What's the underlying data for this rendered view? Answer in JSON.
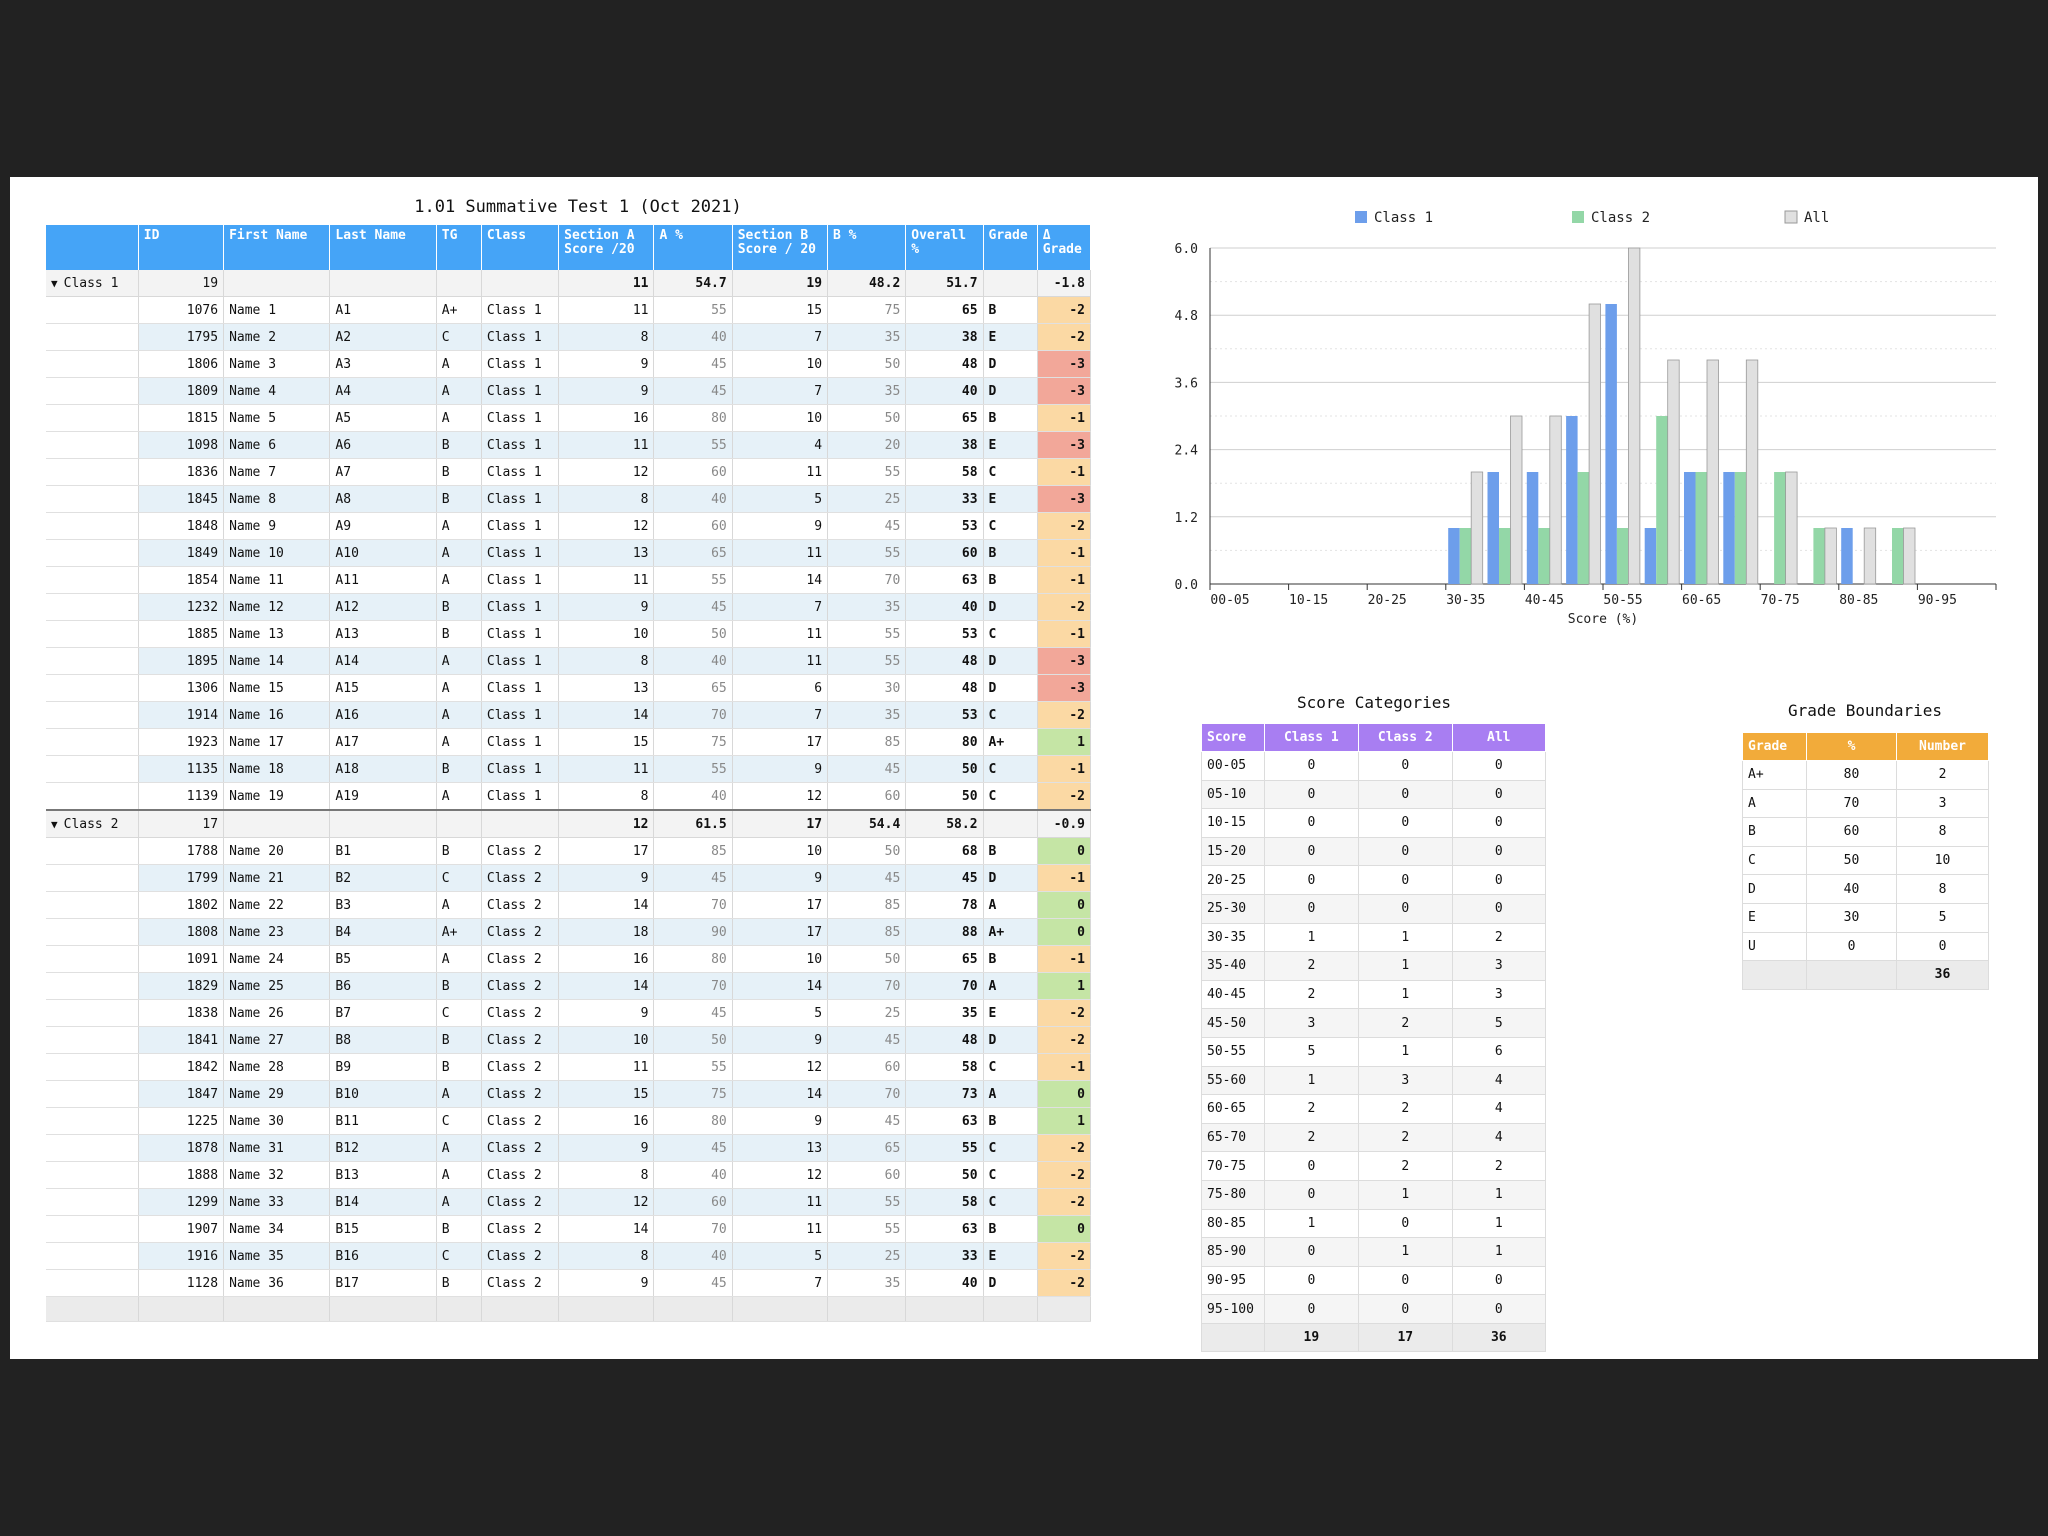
{
  "title": "1.01 Summative Test 1 (Oct 2021)",
  "columns": [
    "",
    "ID",
    "First Name",
    "Last Name",
    "TG",
    "Class",
    "Section A Score /20",
    "A %",
    "Section B Score / 20",
    "B %",
    "Overall %",
    "Grade",
    "Δ Grade"
  ],
  "colors": {
    "delta_pos": "#c5e5a5",
    "delta_neg1": "#fbd9a4",
    "delta_neg3": "#f2a799",
    "class1": "#6d9eeb",
    "class2": "#93d7a7",
    "all": "#e0e0e0"
  },
  "groups": [
    {
      "label": "Class 1",
      "id": "19",
      "summary": {
        "secA": "11",
        "aPct": "54.7",
        "secB": "19",
        "bPct": "48.2",
        "overall": "51.7",
        "delta": "-1.8"
      },
      "rows": [
        [
          "1076",
          "Name 1",
          "A1",
          "A+",
          "Class 1",
          "11",
          "55",
          "15",
          "75",
          "65",
          "B",
          "-2"
        ],
        [
          "1795",
          "Name 2",
          "A2",
          "C",
          "Class 1",
          "8",
          "40",
          "7",
          "35",
          "38",
          "E",
          "-2"
        ],
        [
          "1806",
          "Name 3",
          "A3",
          "A",
          "Class 1",
          "9",
          "45",
          "10",
          "50",
          "48",
          "D",
          "-3"
        ],
        [
          "1809",
          "Name 4",
          "A4",
          "A",
          "Class 1",
          "9",
          "45",
          "7",
          "35",
          "40",
          "D",
          "-3"
        ],
        [
          "1815",
          "Name 5",
          "A5",
          "A",
          "Class 1",
          "16",
          "80",
          "10",
          "50",
          "65",
          "B",
          "-1"
        ],
        [
          "1098",
          "Name 6",
          "A6",
          "B",
          "Class 1",
          "11",
          "55",
          "4",
          "20",
          "38",
          "E",
          "-3"
        ],
        [
          "1836",
          "Name 7",
          "A7",
          "B",
          "Class 1",
          "12",
          "60",
          "11",
          "55",
          "58",
          "C",
          "-1"
        ],
        [
          "1845",
          "Name 8",
          "A8",
          "B",
          "Class 1",
          "8",
          "40",
          "5",
          "25",
          "33",
          "E",
          "-3"
        ],
        [
          "1848",
          "Name 9",
          "A9",
          "A",
          "Class 1",
          "12",
          "60",
          "9",
          "45",
          "53",
          "C",
          "-2"
        ],
        [
          "1849",
          "Name 10",
          "A10",
          "A",
          "Class 1",
          "13",
          "65",
          "11",
          "55",
          "60",
          "B",
          "-1"
        ],
        [
          "1854",
          "Name 11",
          "A11",
          "A",
          "Class 1",
          "11",
          "55",
          "14",
          "70",
          "63",
          "B",
          "-1"
        ],
        [
          "1232",
          "Name 12",
          "A12",
          "B",
          "Class 1",
          "9",
          "45",
          "7",
          "35",
          "40",
          "D",
          "-2"
        ],
        [
          "1885",
          "Name 13",
          "A13",
          "B",
          "Class 1",
          "10",
          "50",
          "11",
          "55",
          "53",
          "C",
          "-1"
        ],
        [
          "1895",
          "Name 14",
          "A14",
          "A",
          "Class 1",
          "8",
          "40",
          "11",
          "55",
          "48",
          "D",
          "-3"
        ],
        [
          "1306",
          "Name 15",
          "A15",
          "A",
          "Class 1",
          "13",
          "65",
          "6",
          "30",
          "48",
          "D",
          "-3"
        ],
        [
          "1914",
          "Name 16",
          "A16",
          "A",
          "Class 1",
          "14",
          "70",
          "7",
          "35",
          "53",
          "C",
          "-2"
        ],
        [
          "1923",
          "Name 17",
          "A17",
          "A",
          "Class 1",
          "15",
          "75",
          "17",
          "85",
          "80",
          "A+",
          "1"
        ],
        [
          "1135",
          "Name 18",
          "A18",
          "B",
          "Class 1",
          "11",
          "55",
          "9",
          "45",
          "50",
          "C",
          "-1"
        ],
        [
          "1139",
          "Name 19",
          "A19",
          "A",
          "Class 1",
          "8",
          "40",
          "12",
          "60",
          "50",
          "C",
          "-2"
        ]
      ]
    },
    {
      "label": "Class 2",
      "id": "17",
      "summary": {
        "secA": "12",
        "aPct": "61.5",
        "secB": "17",
        "bPct": "54.4",
        "overall": "58.2",
        "delta": "-0.9"
      },
      "rows": [
        [
          "1788",
          "Name 20",
          "B1",
          "B",
          "Class 2",
          "17",
          "85",
          "10",
          "50",
          "68",
          "B",
          "0"
        ],
        [
          "1799",
          "Name 21",
          "B2",
          "C",
          "Class 2",
          "9",
          "45",
          "9",
          "45",
          "45",
          "D",
          "-1"
        ],
        [
          "1802",
          "Name 22",
          "B3",
          "A",
          "Class 2",
          "14",
          "70",
          "17",
          "85",
          "78",
          "A",
          "0"
        ],
        [
          "1808",
          "Name 23",
          "B4",
          "A+",
          "Class 2",
          "18",
          "90",
          "17",
          "85",
          "88",
          "A+",
          "0"
        ],
        [
          "1091",
          "Name 24",
          "B5",
          "A",
          "Class 2",
          "16",
          "80",
          "10",
          "50",
          "65",
          "B",
          "-1"
        ],
        [
          "1829",
          "Name 25",
          "B6",
          "B",
          "Class 2",
          "14",
          "70",
          "14",
          "70",
          "70",
          "A",
          "1"
        ],
        [
          "1838",
          "Name 26",
          "B7",
          "C",
          "Class 2",
          "9",
          "45",
          "5",
          "25",
          "35",
          "E",
          "-2"
        ],
        [
          "1841",
          "Name 27",
          "B8",
          "B",
          "Class 2",
          "10",
          "50",
          "9",
          "45",
          "48",
          "D",
          "-2"
        ],
        [
          "1842",
          "Name 28",
          "B9",
          "B",
          "Class 2",
          "11",
          "55",
          "12",
          "60",
          "58",
          "C",
          "-1"
        ],
        [
          "1847",
          "Name 29",
          "B10",
          "A",
          "Class 2",
          "15",
          "75",
          "14",
          "70",
          "73",
          "A",
          "0"
        ],
        [
          "1225",
          "Name 30",
          "B11",
          "C",
          "Class 2",
          "16",
          "80",
          "9",
          "45",
          "63",
          "B",
          "1"
        ],
        [
          "1878",
          "Name 31",
          "B12",
          "A",
          "Class 2",
          "9",
          "45",
          "13",
          "65",
          "55",
          "C",
          "-2"
        ],
        [
          "1888",
          "Name 32",
          "B13",
          "A",
          "Class 2",
          "8",
          "40",
          "12",
          "60",
          "50",
          "C",
          "-2"
        ],
        [
          "1299",
          "Name 33",
          "B14",
          "A",
          "Class 2",
          "12",
          "60",
          "11",
          "55",
          "58",
          "C",
          "-2"
        ],
        [
          "1907",
          "Name 34",
          "B15",
          "B",
          "Class 2",
          "14",
          "70",
          "11",
          "55",
          "63",
          "B",
          "0"
        ],
        [
          "1916",
          "Name 35",
          "B16",
          "C",
          "Class 2",
          "8",
          "40",
          "5",
          "25",
          "33",
          "E",
          "-2"
        ],
        [
          "1128",
          "Name 36",
          "B17",
          "B",
          "Class 2",
          "9",
          "45",
          "7",
          "35",
          "40",
          "D",
          "-2"
        ]
      ]
    }
  ],
  "chart_data": {
    "type": "bar",
    "xlabel": "Score (%)",
    "ylim": [
      0,
      6
    ],
    "yticks": [
      "0.0",
      "1.2",
      "2.4",
      "3.6",
      "4.8",
      "6.0"
    ],
    "grid": true,
    "legend_position": "top",
    "categories": [
      "00-05",
      "05-10",
      "10-15",
      "15-20",
      "20-25",
      "25-30",
      "30-35",
      "35-40",
      "40-45",
      "45-50",
      "50-55",
      "55-60",
      "60-65",
      "65-70",
      "70-75",
      "75-80",
      "80-85",
      "85-90",
      "90-95",
      "95-100"
    ],
    "category_labels": [
      "00-05",
      "10-15",
      "20-25",
      "30-35",
      "40-45",
      "50-55",
      "60-65",
      "70-75",
      "80-85",
      "90-95"
    ],
    "series": [
      {
        "name": "Class 1",
        "color": "#6d9eeb",
        "values": [
          0,
          0,
          0,
          0,
          0,
          0,
          1,
          2,
          2,
          3,
          5,
          1,
          2,
          2,
          0,
          0,
          1,
          0,
          0,
          0
        ]
      },
      {
        "name": "Class 2",
        "color": "#93d7a7",
        "values": [
          0,
          0,
          0,
          0,
          0,
          0,
          1,
          1,
          1,
          2,
          1,
          3,
          2,
          2,
          2,
          1,
          0,
          1,
          0,
          0
        ]
      },
      {
        "name": "All",
        "color": "#e0e0e0",
        "values": [
          0,
          0,
          0,
          0,
          0,
          0,
          2,
          3,
          3,
          5,
          6,
          4,
          4,
          4,
          2,
          1,
          1,
          1,
          0,
          0
        ]
      }
    ]
  },
  "score_categories": {
    "title": "Score Categories",
    "headers": [
      "Score",
      "Class 1",
      "Class 2",
      "All"
    ],
    "rows": [
      [
        "00-05",
        "0",
        "0",
        "0"
      ],
      [
        "05-10",
        "0",
        "0",
        "0"
      ],
      [
        "10-15",
        "0",
        "0",
        "0"
      ],
      [
        "15-20",
        "0",
        "0",
        "0"
      ],
      [
        "20-25",
        "0",
        "0",
        "0"
      ],
      [
        "25-30",
        "0",
        "0",
        "0"
      ],
      [
        "30-35",
        "1",
        "1",
        "2"
      ],
      [
        "35-40",
        "2",
        "1",
        "3"
      ],
      [
        "40-45",
        "2",
        "1",
        "3"
      ],
      [
        "45-50",
        "3",
        "2",
        "5"
      ],
      [
        "50-55",
        "5",
        "1",
        "6"
      ],
      [
        "55-60",
        "1",
        "3",
        "4"
      ],
      [
        "60-65",
        "2",
        "2",
        "4"
      ],
      [
        "65-70",
        "2",
        "2",
        "4"
      ],
      [
        "70-75",
        "0",
        "2",
        "2"
      ],
      [
        "75-80",
        "0",
        "1",
        "1"
      ],
      [
        "80-85",
        "1",
        "0",
        "1"
      ],
      [
        "85-90",
        "0",
        "1",
        "1"
      ],
      [
        "90-95",
        "0",
        "0",
        "0"
      ],
      [
        "95-100",
        "0",
        "0",
        "0"
      ]
    ],
    "totals": [
      "",
      "19",
      "17",
      "36"
    ]
  },
  "grade_boundaries": {
    "title": "Grade Boundaries",
    "headers": [
      "Grade",
      "%",
      "Number"
    ],
    "rows": [
      [
        "A+",
        "80",
        "2"
      ],
      [
        "A",
        "70",
        "3"
      ],
      [
        "B",
        "60",
        "8"
      ],
      [
        "C",
        "50",
        "10"
      ],
      [
        "D",
        "40",
        "8"
      ],
      [
        "E",
        "30",
        "5"
      ],
      [
        "U",
        "0",
        "0"
      ]
    ],
    "totals": [
      "",
      "",
      "36"
    ]
  }
}
